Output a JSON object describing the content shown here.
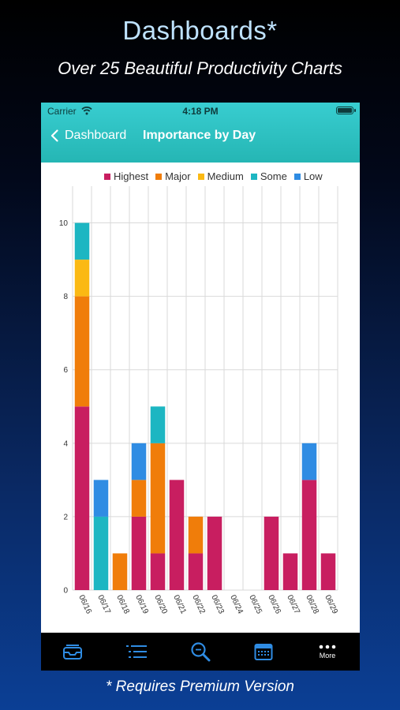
{
  "promo": {
    "title": "Dashboards*",
    "subtitle": "Over 25 Beautiful Productivity Charts",
    "footnote": "* Requires Premium Version"
  },
  "status_bar": {
    "carrier": "Carrier",
    "time": "4:18 PM"
  },
  "nav": {
    "back_label": "Dashboard",
    "title": "Importance by Day"
  },
  "colors": {
    "accent": "#2bbfbf",
    "highest": "#c81e60",
    "major": "#f07d0a",
    "medium": "#fbb913",
    "some": "#1db6c2",
    "low": "#2f8ce3"
  },
  "tabbar": {
    "items": [
      {
        "icon": "inbox-icon",
        "label": ""
      },
      {
        "icon": "list-icon",
        "label": ""
      },
      {
        "icon": "search-icon",
        "label": ""
      },
      {
        "icon": "calendar-icon",
        "label": ""
      },
      {
        "icon": "more-icon",
        "label": "More"
      }
    ]
  },
  "chart_data": {
    "type": "bar",
    "stacked": true,
    "title": "",
    "xlabel": "",
    "ylabel": "",
    "ylim": [
      0,
      11
    ],
    "yticks": [
      0,
      2,
      4,
      6,
      8,
      10
    ],
    "grid": true,
    "legend": "top",
    "categories": [
      "06/16",
      "06/17",
      "06/18",
      "06/19",
      "06/20",
      "06/21",
      "06/22",
      "06/23",
      "06/24",
      "06/25",
      "06/26",
      "06/27",
      "06/28",
      "06/29"
    ],
    "series": [
      {
        "name": "Highest",
        "color": "#c81e60",
        "values": [
          5,
          0,
          0,
          2,
          1,
          3,
          1,
          2,
          0,
          0,
          2,
          1,
          3,
          1
        ]
      },
      {
        "name": "Major",
        "color": "#f07d0a",
        "values": [
          3,
          0,
          1,
          1,
          3,
          0,
          1,
          0,
          0,
          0,
          0,
          0,
          0,
          0
        ]
      },
      {
        "name": "Medium",
        "color": "#fbb913",
        "values": [
          1,
          0,
          0,
          0,
          0,
          0,
          0,
          0,
          0,
          0,
          0,
          0,
          0,
          0
        ]
      },
      {
        "name": "Some",
        "color": "#1db6c2",
        "values": [
          1,
          2,
          0,
          0,
          1,
          0,
          0,
          0,
          0,
          0,
          0,
          0,
          0,
          0
        ]
      },
      {
        "name": "Low",
        "color": "#2f8ce3",
        "values": [
          0,
          1,
          0,
          1,
          0,
          0,
          0,
          0,
          0,
          0,
          0,
          0,
          1,
          0
        ]
      }
    ]
  }
}
